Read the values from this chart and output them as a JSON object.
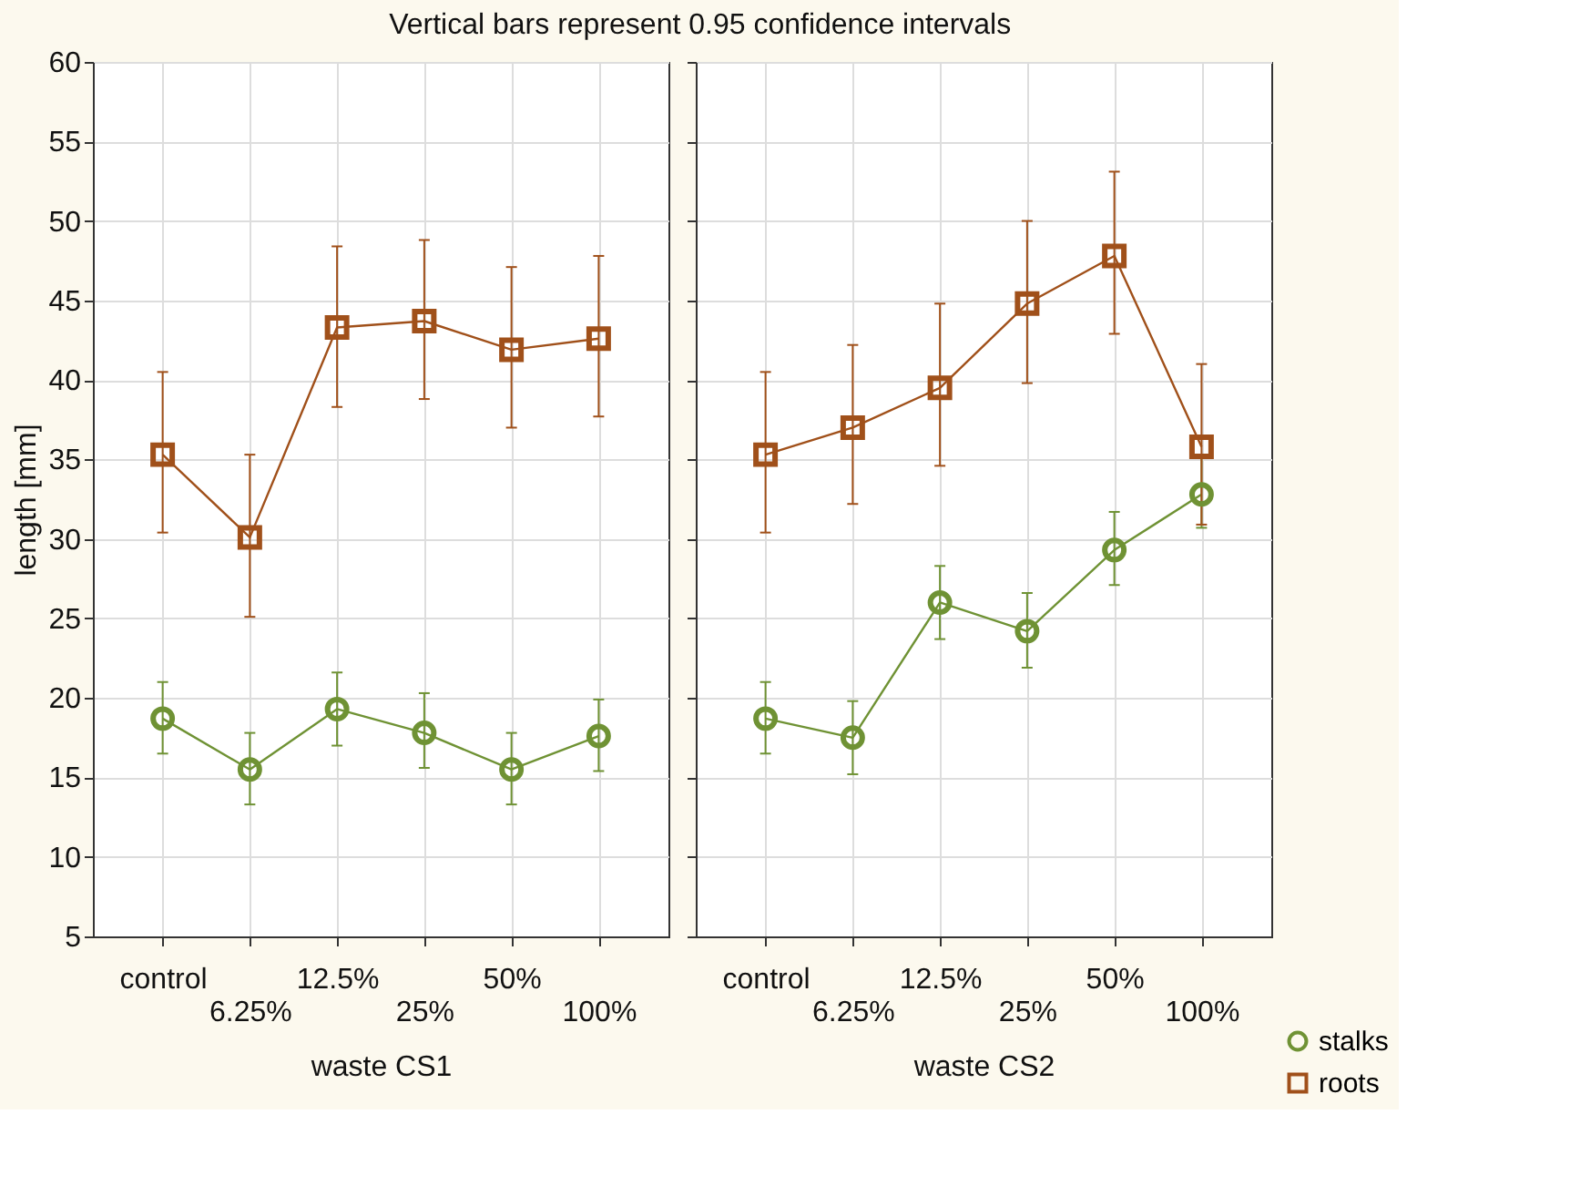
{
  "chart_data": [
    {
      "type": "line",
      "title": "Vertical bars represent 0.95 confidence intervals",
      "xlabel": "waste CS1",
      "ylabel": "length [mm]",
      "categories": [
        "control",
        "6.25%",
        "12.5%",
        "25%",
        "50%",
        "100%"
      ],
      "ylim": [
        5,
        60
      ],
      "yticks": [
        5,
        10,
        15,
        20,
        25,
        30,
        35,
        40,
        45,
        50,
        55,
        60
      ],
      "grid": true,
      "legend": "bottom right",
      "series": [
        {
          "name": "stalks",
          "color": "#6f9234",
          "marker": "circle",
          "values": [
            18.7,
            15.5,
            19.3,
            17.8,
            15.5,
            17.6
          ],
          "errors": [
            [
              16.5,
              21.0
            ],
            [
              13.3,
              17.8
            ],
            [
              17.0,
              21.6
            ],
            [
              15.6,
              20.3
            ],
            [
              13.3,
              17.8
            ],
            [
              15.4,
              19.9
            ]
          ]
        },
        {
          "name": "roots",
          "color": "#a0501a",
          "marker": "square",
          "values": [
            35.3,
            30.1,
            43.3,
            43.7,
            41.9,
            42.6
          ],
          "errors": [
            [
              30.4,
              40.5
            ],
            [
              25.1,
              35.3
            ],
            [
              38.3,
              48.4
            ],
            [
              38.8,
              48.8
            ],
            [
              37.0,
              47.1
            ],
            [
              37.7,
              47.8
            ]
          ]
        }
      ]
    },
    {
      "type": "line",
      "xlabel": "waste CS2",
      "categories": [
        "control",
        "6.25%",
        "12.5%",
        "25%",
        "50%",
        "100%"
      ],
      "ylim": [
        5,
        60
      ],
      "yticks": [
        5,
        10,
        15,
        20,
        25,
        30,
        35,
        40,
        45,
        50,
        55,
        60
      ],
      "grid": true,
      "tick_labels": "x",
      "legend": "bottom right",
      "series": [
        {
          "name": "stalks",
          "color": "#6f9234",
          "marker": "circle",
          "values": [
            18.7,
            17.5,
            26.0,
            24.2,
            29.3,
            32.8
          ],
          "errors": [
            [
              16.5,
              21.0
            ],
            [
              15.2,
              19.8
            ],
            [
              23.7,
              28.3
            ],
            [
              21.9,
              26.6
            ],
            [
              27.1,
              31.7
            ],
            [
              30.7,
              35.2
            ]
          ]
        },
        {
          "name": "roots",
          "color": "#a0501a",
          "marker": "square",
          "values": [
            35.3,
            37.0,
            39.5,
            44.8,
            47.8,
            35.8
          ],
          "errors": [
            [
              30.4,
              40.5
            ],
            [
              32.2,
              42.2
            ],
            [
              34.6,
              44.8
            ],
            [
              39.8,
              50.0
            ],
            [
              42.9,
              53.1
            ],
            [
              30.9,
              41.0
            ]
          ]
        }
      ]
    }
  ]
}
